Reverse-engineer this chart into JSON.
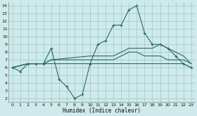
{
  "background_color": "#ceeaea",
  "grid_color": "#a8cccc",
  "line_color": "#2a6b5e",
  "xlabel": "Humidex (Indice chaleur)",
  "xlim": [
    -0.5,
    23.5
  ],
  "ylim": [
    1.5,
    14.5
  ],
  "xticks": [
    0,
    1,
    2,
    3,
    4,
    5,
    6,
    7,
    8,
    9,
    10,
    11,
    12,
    13,
    14,
    15,
    16,
    17,
    18,
    19,
    20,
    21,
    22,
    23
  ],
  "yticks": [
    2,
    3,
    4,
    5,
    6,
    7,
    8,
    9,
    10,
    11,
    12,
    13,
    14
  ],
  "line1_x": [
    0,
    1,
    2,
    3,
    4,
    5,
    6,
    7,
    8,
    9,
    10,
    11,
    12,
    13,
    14,
    15,
    16,
    17,
    18,
    19,
    20,
    21,
    22,
    23
  ],
  "line1_y": [
    6,
    5.5,
    6.5,
    6.5,
    6.5,
    8.5,
    4.5,
    3.5,
    2,
    2.5,
    6.5,
    9,
    9.5,
    11.5,
    11.5,
    13.5,
    14,
    10.5,
    9,
    9,
    8.5,
    7.5,
    6.5,
    6
  ],
  "line2_x": [
    0,
    2,
    3,
    4,
    5,
    10,
    11,
    12,
    13,
    14,
    15,
    16,
    17,
    18,
    19,
    20,
    21,
    22,
    23
  ],
  "line2_y": [
    6,
    6.5,
    6.5,
    6.5,
    7,
    7.5,
    7.5,
    7.5,
    7.5,
    8,
    8.5,
    8.5,
    8.5,
    8.5,
    9,
    8.5,
    8,
    7.5,
    6.5
  ],
  "line3_x": [
    0,
    2,
    3,
    4,
    5,
    10,
    11,
    12,
    13,
    14,
    15,
    16,
    17,
    18,
    19,
    20,
    21,
    22,
    23
  ],
  "line3_y": [
    6,
    6.5,
    6.5,
    6.5,
    6.5,
    6.5,
    6.5,
    6.5,
    6.5,
    6.5,
    6.5,
    6.5,
    6.5,
    6.5,
    6.5,
    6.5,
    6.5,
    6.5,
    6
  ],
  "line4_x": [
    0,
    2,
    3,
    4,
    5,
    10,
    11,
    12,
    13,
    14,
    15,
    16,
    17,
    18,
    19,
    20,
    21,
    22,
    23
  ],
  "line4_y": [
    6,
    6.5,
    6.5,
    6.5,
    7,
    7,
    7,
    7,
    7,
    7.5,
    8,
    8,
    7.5,
    7.5,
    7.5,
    7,
    7,
    7,
    6.5
  ]
}
